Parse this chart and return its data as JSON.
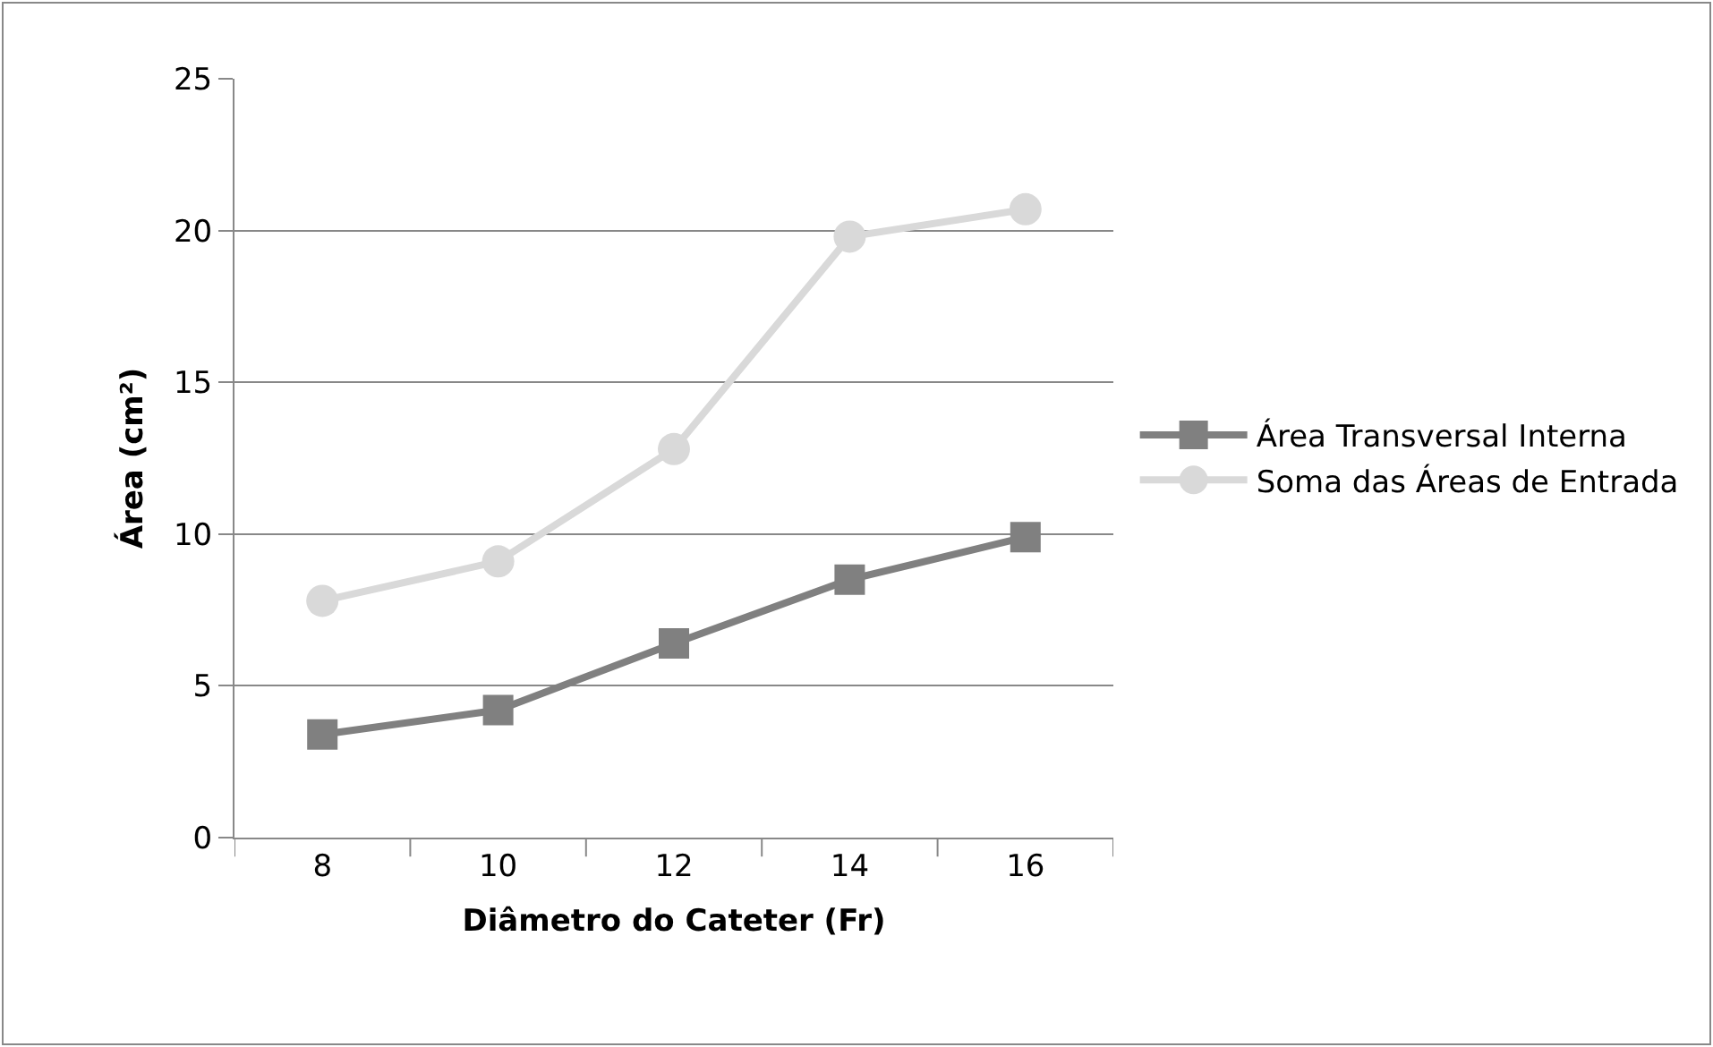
{
  "chart_data": {
    "type": "line",
    "xlabel": "Diâmetro do Cateter (Fr)",
    "ylabel": "Área (cm²)",
    "categories": [
      "8",
      "10",
      "12",
      "14",
      "16"
    ],
    "series": [
      {
        "name": "Área Transversal Interna",
        "color": "#808080",
        "marker": "square",
        "values": [
          3.4,
          4.2,
          6.4,
          8.5,
          9.9
        ]
      },
      {
        "name": "Soma das Áreas de Entrada",
        "color": "#d9d9d9",
        "marker": "circle",
        "values": [
          7.8,
          9.1,
          12.8,
          19.8,
          20.7
        ]
      }
    ],
    "ylim": [
      0,
      25
    ],
    "yticks": [
      0,
      5,
      10,
      15,
      20,
      25
    ],
    "grid": "y",
    "legend": "right"
  }
}
